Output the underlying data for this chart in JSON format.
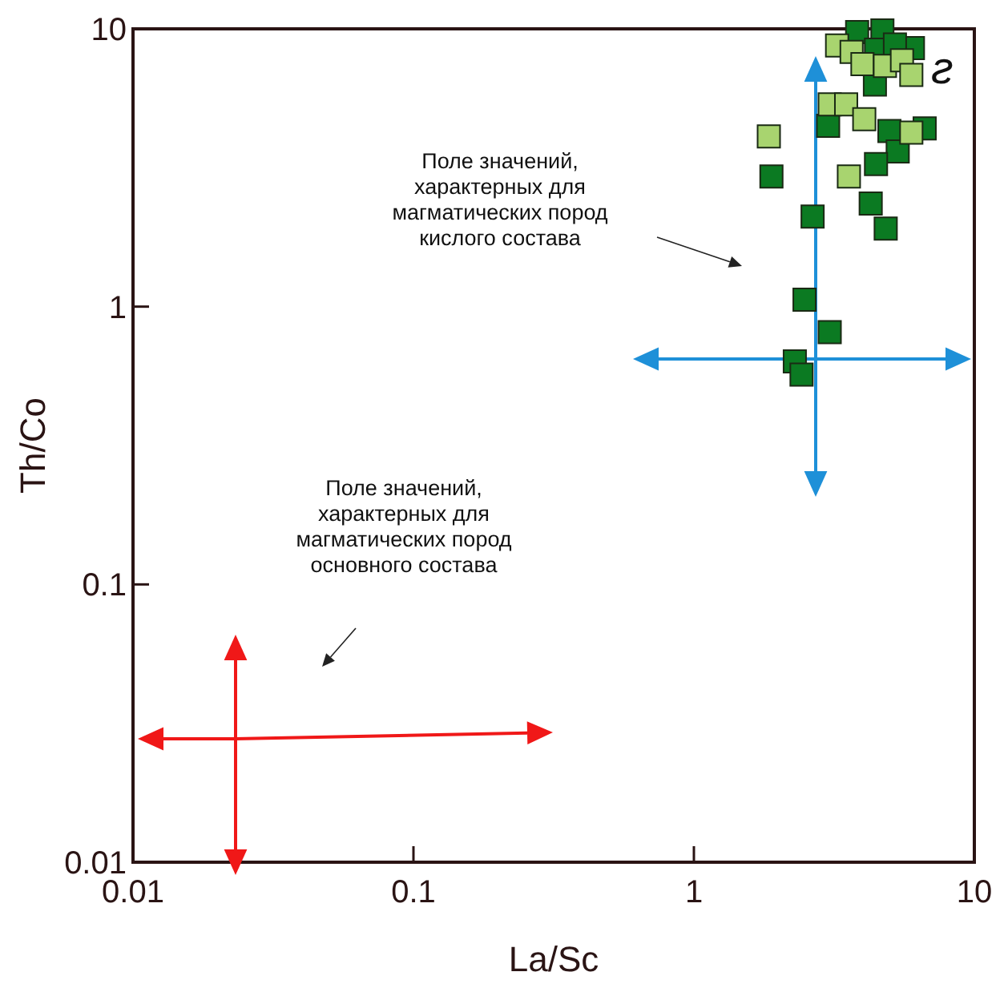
{
  "chart_data": {
    "type": "scatter",
    "xlabel": "La/Sc",
    "ylabel": "Th/Co",
    "log": "xy",
    "xlim": [
      0.01,
      10
    ],
    "ylim": [
      0.01,
      10
    ],
    "xticks": [
      0.01,
      0.1,
      1,
      10
    ],
    "yticks": [
      0.01,
      0.1,
      1,
      10
    ],
    "marker": "square",
    "grid": false,
    "annotations": [
      "Поле значений,\nхарактерных для\nмагматических пород\nкислого состава",
      "Поле значений,\nхарактерных для\nмагматических пород\nосновного состава",
      "ƨ"
    ],
    "series": [
      {
        "color": "#0b7a22",
        "x": [
          3.82,
          4.7,
          4.46,
          6.04,
          5.21,
          4.42,
          3.01,
          4.98,
          6.65,
          5.33,
          4.46,
          1.89,
          4.27,
          4.83,
          2.65,
          2.48,
          3.05,
          2.29,
          2.42
        ],
        "values": [
          9.73,
          9.87,
          8.41,
          8.52,
          8.79,
          6.3,
          4.48,
          4.29,
          4.38,
          3.62,
          3.26,
          2.94,
          2.35,
          1.91,
          2.11,
          1.06,
          0.81,
          0.635,
          0.569
        ]
      },
      {
        "color": "#a8d46f",
        "x": [
          3.24,
          3.65,
          3.99,
          4.8,
          5.52,
          5.96,
          3.05,
          3.49,
          4.05,
          5.96,
          1.85,
          3.57
        ],
        "values": [
          8.71,
          8.26,
          7.46,
          7.36,
          7.7,
          6.82,
          5.35,
          5.35,
          4.73,
          4.23,
          4.1,
          2.94
        ]
      }
    ]
  }
}
